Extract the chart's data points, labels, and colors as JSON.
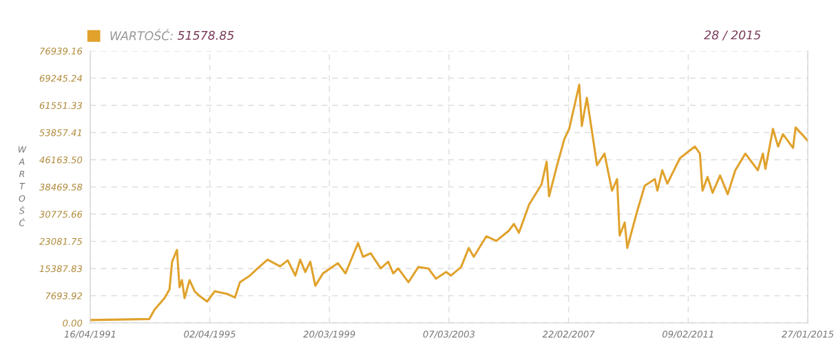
{
  "chart_data": {
    "type": "line",
    "ylabel": "WARTOŚĆ",
    "annotations": [
      "51578.85",
      "28 / 2015"
    ],
    "legend": "top left",
    "grid": true,
    "marker": "none",
    "line_style": "solid",
    "xlim": [
      "1991-04-16",
      "2015-01-27"
    ],
    "xticks": [
      {
        "value": "1991-04-16",
        "label": "16/04/1991"
      },
      {
        "value": "1995-04-02",
        "label": "02/04/1995"
      },
      {
        "value": "1999-03-20",
        "label": "20/03/1999"
      },
      {
        "value": "2003-03-07",
        "label": "07/03/2003"
      },
      {
        "value": "2007-02-22",
        "label": "22/02/2007"
      },
      {
        "value": "2011-02-09",
        "label": "09/02/2011"
      },
      {
        "value": "2015-01-27",
        "label": "27/01/2015"
      }
    ],
    "ylim": [
      0,
      76939.16
    ],
    "yticks": [
      {
        "value": 0,
        "label": "0.00"
      },
      {
        "value": 7693.92,
        "label": "7693.92"
      },
      {
        "value": 15387.83,
        "label": "15387.83"
      },
      {
        "value": 23081.75,
        "label": "23081.75"
      },
      {
        "value": 30775.66,
        "label": "30775.66"
      },
      {
        "value": 38469.58,
        "label": "38469.58"
      },
      {
        "value": 46163.5,
        "label": "46163.50"
      },
      {
        "value": 53857.41,
        "label": "53857.41"
      },
      {
        "value": 61551.33,
        "label": "61551.33"
      },
      {
        "value": 69245.24,
        "label": "69245.24"
      },
      {
        "value": 76939.16,
        "label": "76939.16"
      }
    ],
    "x": [
      "1991-04-16",
      "1993-04",
      "1993-06",
      "1993-10",
      "1993-12",
      "1994-01",
      "1994-03",
      "1994-04",
      "1994-05",
      "1994-06",
      "1994-08",
      "1994-10",
      "1994-12",
      "1995-03",
      "1995-06",
      "1995-11",
      "1996-02",
      "1996-04",
      "1996-08",
      "1996-11",
      "1997-03",
      "1997-08",
      "1997-11",
      "1998-02",
      "1998-04",
      "1998-06",
      "1998-08",
      "1998-10",
      "1999-01",
      "1999-07",
      "1999-10",
      "2000-03",
      "2000-05",
      "2000-08",
      "2000-12",
      "2001-03",
      "2001-05",
      "2001-07",
      "2001-11",
      "2002-03",
      "2002-07",
      "2002-10",
      "2003-02",
      "2003-04",
      "2003-08",
      "2003-11",
      "2004-01",
      "2004-06",
      "2004-10",
      "2005-03",
      "2005-05",
      "2005-07",
      "2005-11",
      "2006-04",
      "2006-06",
      "2006-07",
      "2006-10",
      "2007-01",
      "2007-03",
      "2007-07",
      "2007-08",
      "2007-10",
      "2007-12",
      "2008-02",
      "2008-05",
      "2008-08",
      "2008-10",
      "2008-11",
      "2009-01",
      "2009-02",
      "2009-06",
      "2009-09",
      "2010-01",
      "2010-02",
      "2010-04",
      "2010-06",
      "2010-11",
      "2011-05",
      "2011-07",
      "2011-08",
      "2011-10",
      "2011-12",
      "2012-03",
      "2012-06",
      "2012-09",
      "2013-01",
      "2013-06",
      "2013-08",
      "2013-09",
      "2013-12",
      "2014-02",
      "2014-04",
      "2014-08",
      "2014-09",
      "2014-12",
      "2015-01-27"
    ],
    "series": [
      {
        "name": "WARTOŚĆ:",
        "color": "#e0a22c",
        "values": [
          800,
          1100,
          3700,
          7000,
          9500,
          17300,
          20650,
          10100,
          12100,
          7000,
          12100,
          8950,
          7600,
          6040,
          8950,
          8200,
          7200,
          11500,
          13400,
          15400,
          17900,
          16000,
          17700,
          13400,
          17900,
          14400,
          17300,
          10500,
          14000,
          16900,
          14000,
          22600,
          18700,
          19700,
          15400,
          17300,
          14000,
          15400,
          11500,
          15800,
          15400,
          12500,
          14400,
          13400,
          15800,
          21200,
          18700,
          24500,
          23200,
          26100,
          28000,
          25500,
          33500,
          39200,
          45600,
          35800,
          44200,
          52000,
          54900,
          67400,
          55700,
          63700,
          54300,
          44600,
          47900,
          37400,
          40700,
          24700,
          28400,
          21200,
          31600,
          38800,
          40700,
          37400,
          43200,
          39400,
          46600,
          49900,
          47900,
          37400,
          41300,
          36800,
          41700,
          36400,
          43200,
          47900,
          43200,
          47900,
          43600,
          54900,
          49900,
          53400,
          49500,
          55300,
          53000,
          51500
        ]
      }
    ]
  }
}
